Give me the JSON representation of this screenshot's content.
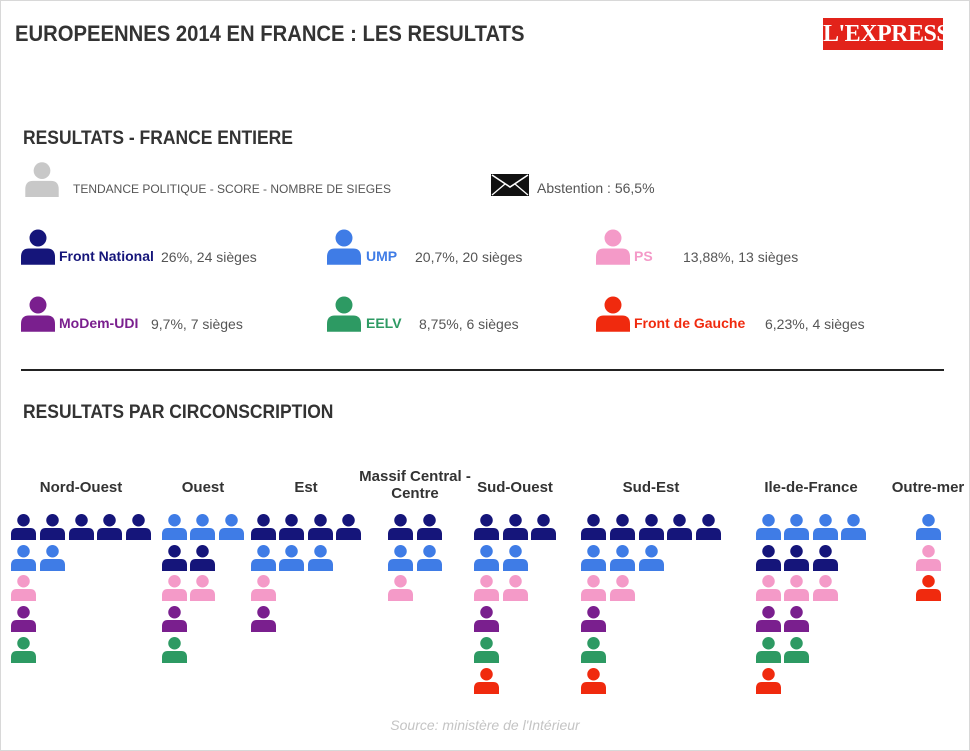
{
  "header": {
    "title": "EUROPEENNES 2014 EN FRANCE : LES RESULTATS",
    "logo": "L'EXPRESS"
  },
  "sections": {
    "france": "RESULTATS - FRANCE ENTIERE",
    "circonscription": "RESULTATS PAR CIRCONSCRIPTION"
  },
  "legend": {
    "caption": "TENDANCE POLITIQUE - SCORE - NOMBRE DE SIEGES",
    "caption_icon_color": "#c8c8c8",
    "abstention": "Abstention : 56,5%",
    "abstention_icon": "envelope-icon"
  },
  "chart_data": {
    "type": "pictogram",
    "title": "EUROPEENNES 2014 EN FRANCE : LES RESULTATS",
    "source": "Source: ministère de l'Intérieur",
    "parties": [
      {
        "key": "FN",
        "name": "Front National",
        "score_seats": "26%, 24 sièges",
        "color": "#15157a"
      },
      {
        "key": "UMP",
        "name": "UMP",
        "score_seats": "20,7%, 20 sièges",
        "color": "#3f7ce6"
      },
      {
        "key": "PS",
        "name": "PS",
        "score_seats": "13,88%, 13 sièges",
        "color": "#f49ac8"
      },
      {
        "key": "MODEM",
        "name": "MoDem-UDI",
        "score_seats": "9,7%, 7 sièges",
        "color": "#7a1f8e"
      },
      {
        "key": "EELV",
        "name": "EELV",
        "score_seats": "8,75%, 6 sièges",
        "color": "#2d9a63"
      },
      {
        "key": "FG",
        "name": "Front de Gauche",
        "score_seats": "6,23%, 4 sièges",
        "color": "#f02a0e"
      }
    ],
    "regions": [
      {
        "name": "Nord-Ouest",
        "seats": {
          "FN": 5,
          "UMP": 2,
          "PS": 1,
          "MODEM": 1,
          "EELV": 1,
          "FG": 0
        }
      },
      {
        "name": "Ouest",
        "seats": {
          "FN": 2,
          "UMP": 3,
          "PS": 2,
          "MODEM": 1,
          "EELV": 1,
          "FG": 0
        }
      },
      {
        "name": "Est",
        "seats": {
          "FN": 4,
          "UMP": 3,
          "PS": 1,
          "MODEM": 1,
          "EELV": 0,
          "FG": 0
        }
      },
      {
        "name": "Massif Central - Centre",
        "seats": {
          "FN": 2,
          "UMP": 2,
          "PS": 1,
          "MODEM": 0,
          "EELV": 0,
          "FG": 0
        }
      },
      {
        "name": "Sud-Ouest",
        "seats": {
          "FN": 3,
          "UMP": 2,
          "PS": 2,
          "MODEM": 1,
          "EELV": 1,
          "FG": 1
        }
      },
      {
        "name": "Sud-Est",
        "seats": {
          "FN": 5,
          "UMP": 3,
          "PS": 2,
          "MODEM": 1,
          "EELV": 1,
          "FG": 1
        }
      },
      {
        "name": "Ile-de-France",
        "seats": {
          "FN": 3,
          "UMP": 4,
          "PS": 3,
          "MODEM": 2,
          "EELV": 2,
          "FG": 1
        }
      },
      {
        "name": "Outre-mer",
        "seats": {
          "FN": 0,
          "UMP": 1,
          "PS": 1,
          "MODEM": 0,
          "EELV": 0,
          "FG": 1
        }
      }
    ]
  }
}
